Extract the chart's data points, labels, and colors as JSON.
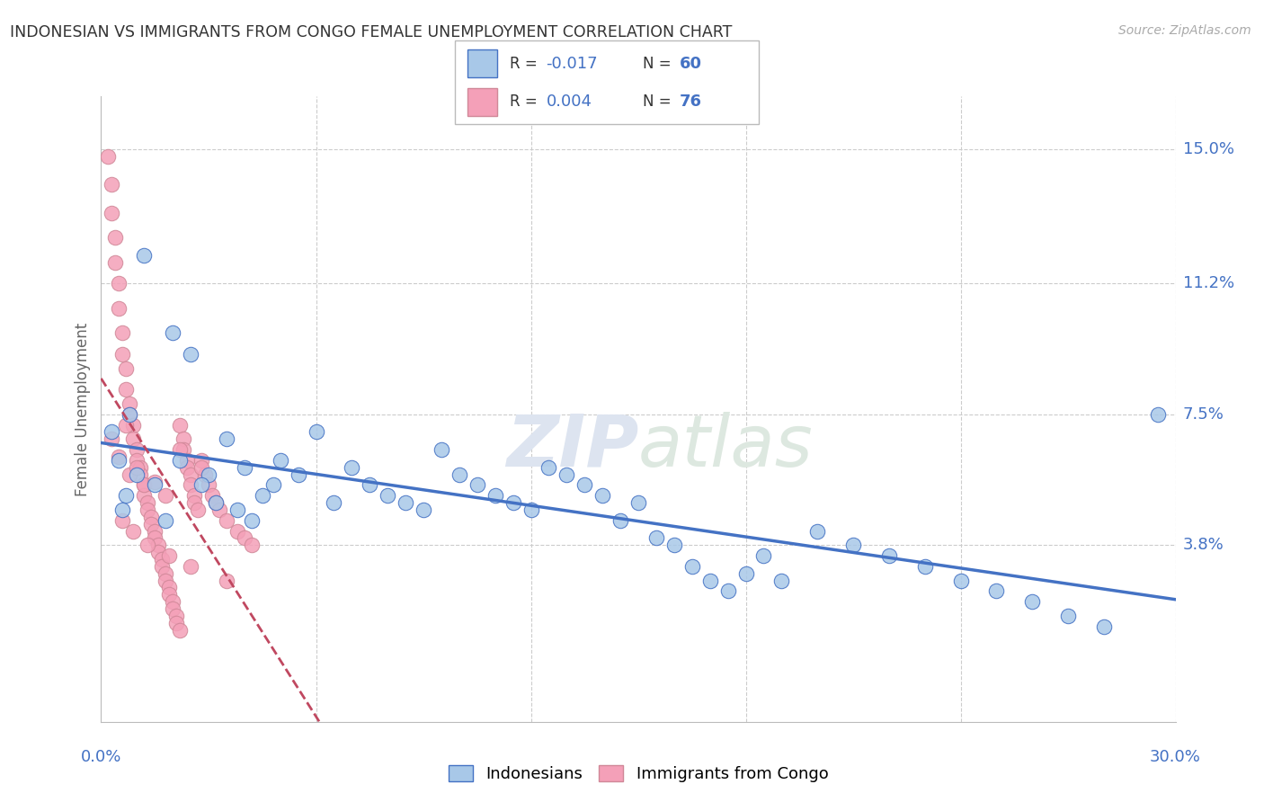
{
  "title": "INDONESIAN VS IMMIGRANTS FROM CONGO FEMALE UNEMPLOYMENT CORRELATION CHART",
  "source": "Source: ZipAtlas.com",
  "ylabel": "Female Unemployment",
  "ytick_values": [
    0.038,
    0.075,
    0.112,
    0.15
  ],
  "ytick_labels": [
    "3.8%",
    "7.5%",
    "11.2%",
    "15.0%"
  ],
  "xmin": 0.0,
  "xmax": 0.3,
  "ymin": -0.012,
  "ymax": 0.165,
  "color_indonesian_fill": "#a8c8e8",
  "color_indonesian_edge": "#4472c4",
  "color_congo_fill": "#f4a0b8",
  "color_congo_edge": "#d08898",
  "color_indonesian_line": "#4472c4",
  "color_congo_line": "#c04860",
  "color_blue_text": "#4472c4",
  "color_grid": "#cccccc",
  "legend_r1_val": "-0.017",
  "legend_n1_val": "60",
  "legend_r2_val": "0.004",
  "legend_n2_val": "76",
  "indonesian_x": [
    0.012,
    0.02,
    0.008,
    0.005,
    0.01,
    0.015,
    0.007,
    0.006,
    0.018,
    0.003,
    0.025,
    0.022,
    0.03,
    0.035,
    0.028,
    0.04,
    0.045,
    0.032,
    0.038,
    0.042,
    0.05,
    0.055,
    0.048,
    0.06,
    0.065,
    0.07,
    0.075,
    0.08,
    0.085,
    0.09,
    0.095,
    0.1,
    0.105,
    0.11,
    0.115,
    0.12,
    0.125,
    0.13,
    0.135,
    0.14,
    0.145,
    0.15,
    0.155,
    0.16,
    0.165,
    0.17,
    0.175,
    0.18,
    0.185,
    0.19,
    0.2,
    0.21,
    0.22,
    0.23,
    0.24,
    0.25,
    0.26,
    0.27,
    0.28,
    0.295
  ],
  "indonesian_y": [
    0.12,
    0.098,
    0.075,
    0.062,
    0.058,
    0.055,
    0.052,
    0.048,
    0.045,
    0.07,
    0.092,
    0.062,
    0.058,
    0.068,
    0.055,
    0.06,
    0.052,
    0.05,
    0.048,
    0.045,
    0.062,
    0.058,
    0.055,
    0.07,
    0.05,
    0.06,
    0.055,
    0.052,
    0.05,
    0.048,
    0.065,
    0.058,
    0.055,
    0.052,
    0.05,
    0.048,
    0.06,
    0.058,
    0.055,
    0.052,
    0.045,
    0.05,
    0.04,
    0.038,
    0.032,
    0.028,
    0.025,
    0.03,
    0.035,
    0.028,
    0.042,
    0.038,
    0.035,
    0.032,
    0.028,
    0.025,
    0.022,
    0.018,
    0.015,
    0.075
  ],
  "congo_x": [
    0.002,
    0.003,
    0.003,
    0.004,
    0.004,
    0.005,
    0.005,
    0.006,
    0.006,
    0.007,
    0.007,
    0.008,
    0.008,
    0.009,
    0.009,
    0.01,
    0.01,
    0.011,
    0.011,
    0.012,
    0.012,
    0.013,
    0.013,
    0.014,
    0.014,
    0.015,
    0.015,
    0.016,
    0.016,
    0.017,
    0.017,
    0.018,
    0.018,
    0.019,
    0.019,
    0.02,
    0.02,
    0.021,
    0.021,
    0.022,
    0.022,
    0.023,
    0.023,
    0.024,
    0.024,
    0.025,
    0.025,
    0.026,
    0.026,
    0.027,
    0.028,
    0.029,
    0.03,
    0.031,
    0.032,
    0.033,
    0.035,
    0.038,
    0.04,
    0.042,
    0.005,
    0.008,
    0.012,
    0.018,
    0.003,
    0.01,
    0.015,
    0.007,
    0.022,
    0.028,
    0.006,
    0.009,
    0.013,
    0.019,
    0.025,
    0.035
  ],
  "congo_y": [
    0.148,
    0.14,
    0.132,
    0.125,
    0.118,
    0.112,
    0.105,
    0.098,
    0.092,
    0.088,
    0.082,
    0.078,
    0.075,
    0.072,
    0.068,
    0.065,
    0.062,
    0.06,
    0.058,
    0.055,
    0.052,
    0.05,
    0.048,
    0.046,
    0.044,
    0.042,
    0.04,
    0.038,
    0.036,
    0.034,
    0.032,
    0.03,
    0.028,
    0.026,
    0.024,
    0.022,
    0.02,
    0.018,
    0.016,
    0.014,
    0.072,
    0.068,
    0.065,
    0.062,
    0.06,
    0.058,
    0.055,
    0.052,
    0.05,
    0.048,
    0.062,
    0.058,
    0.055,
    0.052,
    0.05,
    0.048,
    0.045,
    0.042,
    0.04,
    0.038,
    0.063,
    0.058,
    0.055,
    0.052,
    0.068,
    0.06,
    0.056,
    0.072,
    0.065,
    0.06,
    0.045,
    0.042,
    0.038,
    0.035,
    0.032,
    0.028
  ]
}
